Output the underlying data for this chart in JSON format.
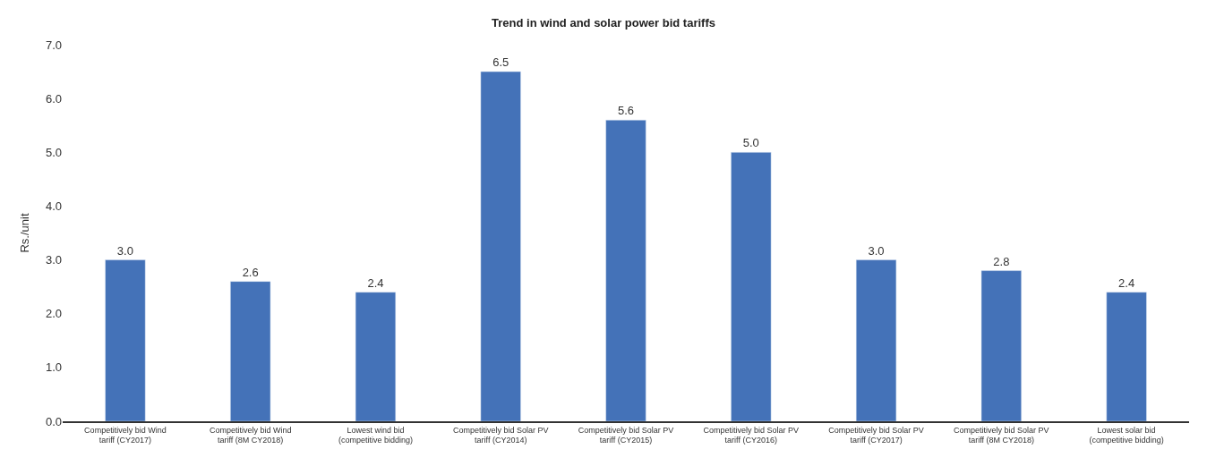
{
  "chart_data": {
    "type": "bar",
    "title": "Trend in wind and solar power bid tariffs",
    "ylabel": "Rs./unit",
    "categories": [
      "Competitively bid Wind\ntariff (CY2017)",
      "Competitively bid Wind\ntariff (8M CY2018)",
      "Lowest wind bid\n(competitive bidding)",
      "Competitively bid Solar PV\ntariff (CY2014)",
      "Competitively bid Solar PV\ntariff (CY2015)",
      "Competitively bid Solar PV\ntariff (CY2016)",
      "Competitively bid Solar PV\ntariff (CY2017)",
      "Competitively bid Solar PV\ntariff (8M CY2018)",
      "Lowest solar bid\n(competitive bidding)"
    ],
    "values": [
      3.0,
      2.6,
      2.4,
      6.5,
      5.6,
      5.0,
      3.0,
      2.8,
      2.4
    ],
    "color": "#4472b8",
    "ylim": [
      0,
      7
    ],
    "yticks": [
      {
        "value": 0,
        "label": "0.0"
      },
      {
        "value": 1,
        "label": "1.0"
      },
      {
        "value": 2,
        "label": "2.0"
      },
      {
        "value": 3,
        "label": "3.0"
      },
      {
        "value": 4,
        "label": "4.0"
      },
      {
        "value": 5,
        "label": "5.0"
      },
      {
        "value": 6,
        "label": "6.0"
      },
      {
        "value": 7,
        "label": "7.0"
      }
    ],
    "value_labels": [
      "3.0",
      "2.6",
      "2.4",
      "6.5",
      "5.6",
      "5.0",
      "3.0",
      "2.8",
      "2.4"
    ],
    "grid": false
  }
}
